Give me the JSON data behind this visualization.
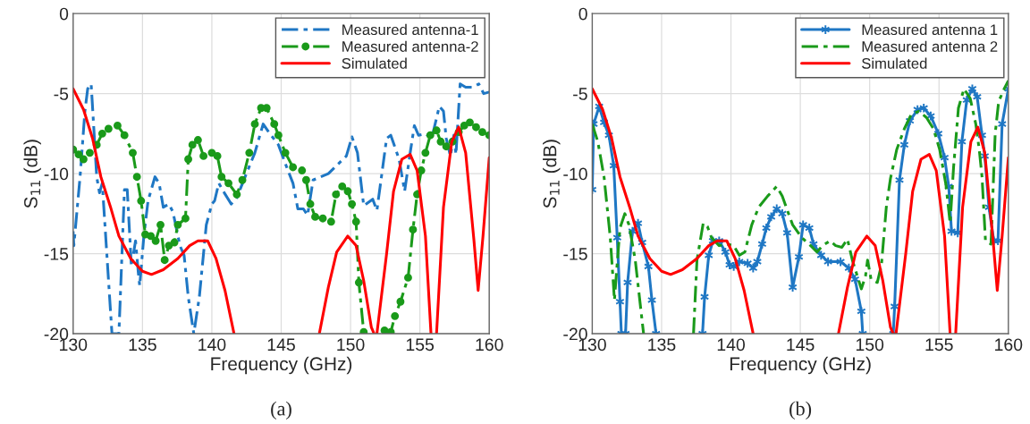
{
  "chart_data": [
    {
      "type": "line",
      "xlabel": "Frequency (GHz)",
      "ylabel": "S$_{11}$ (dB)",
      "xlim": [
        130,
        160
      ],
      "ylim": [
        -20,
        0
      ],
      "xticks": [
        130,
        135,
        140,
        145,
        150,
        155,
        160
      ],
      "yticks": [
        0,
        -5,
        -10,
        -15,
        -20
      ],
      "grid": true,
      "legend": "top right",
      "annotations": [
        "(a)"
      ],
      "series": [
        {
          "name": "Measured antenna-1",
          "color": "#1f77c4",
          "line_style": "dashed",
          "marker": "none",
          "x": [
            130,
            130.05,
            130.5,
            130.85,
            131.05,
            131.3,
            131.7,
            131.9,
            132.1,
            132.8,
            133.3,
            133.7,
            133.9,
            134.2,
            134.5,
            134.7,
            134.8,
            135.1,
            135.4,
            135.9,
            136.2,
            136.5,
            136.9,
            137.2,
            137.7,
            138.0,
            138.3,
            138.7,
            139.1,
            139.6,
            140.0,
            140.2,
            140.5,
            140.9,
            141.4,
            141.8,
            142.4,
            143.1,
            143.7,
            144.1,
            144.8,
            145.4,
            145.85,
            146.2,
            146.6,
            146.9,
            147.3,
            148.4,
            149.7,
            150.1,
            150.5,
            150.95,
            151.6,
            151.9,
            152.6,
            152.9,
            153.5,
            153.9,
            154.3,
            154.6,
            154.9,
            155.4,
            155.85,
            156.4,
            156.7,
            156.9,
            157.2,
            157.45,
            157.6,
            157.9,
            158.3,
            158.8,
            159.25,
            159.6,
            160
          ],
          "values": [
            -13.6,
            -14.5,
            -10.2,
            -6.1,
            -4.7,
            -4.4,
            -10.2,
            -11.2,
            -10.6,
            -20,
            -20,
            -11.0,
            -11.0,
            -15.8,
            -14.2,
            -16.2,
            -17.0,
            -13.9,
            -11.7,
            -10.2,
            -10.6,
            -12.1,
            -11.9,
            -12.4,
            -14.5,
            -15.1,
            -17.7,
            -20,
            -17.7,
            -13.2,
            -11.9,
            -11.7,
            -10.6,
            -11.2,
            -11.9,
            -11.5,
            -10.2,
            -8.7,
            -6.9,
            -7.4,
            -8.2,
            -9.6,
            -10.6,
            -12.2,
            -12.2,
            -12.6,
            -10.4,
            -10.0,
            -8.9,
            -7.7,
            -8.7,
            -12.0,
            -11.6,
            -12.3,
            -7.8,
            -7.6,
            -9.1,
            -11.1,
            -8.7,
            -7.0,
            -7.6,
            -7.5,
            -7.8,
            -5.8,
            -6.1,
            -7.8,
            -8.9,
            -7.6,
            -8.8,
            -4.4,
            -4.6,
            -4.6,
            -4.4,
            -5.0,
            -4.9
          ]
        },
        {
          "name": "Measured antenna-2",
          "color": "#1a9a1a",
          "line_style": "dashed",
          "marker": "circle",
          "x": [
            130,
            130.4,
            130.75,
            131.2,
            131.7,
            132.1,
            132.55,
            133.2,
            133.7,
            134.3,
            134.6,
            134.9,
            135.2,
            135.6,
            135.95,
            136.3,
            136.6,
            136.9,
            137.3,
            137.55,
            138.1,
            138.3,
            138.6,
            139.0,
            139.4,
            140.0,
            140.4,
            140.7,
            141.2,
            141.8,
            142.2,
            142.7,
            143.1,
            143.55,
            143.95,
            144.5,
            144.8,
            145.3,
            145.85,
            146.5,
            146.8,
            147.1,
            147.45,
            148.0,
            148.6,
            148.95,
            149.4,
            149.8,
            150.1,
            150.4,
            150.6,
            150.95,
            151.0,
            152.4,
            152.45,
            152.9,
            153.2,
            153.6,
            154.15,
            154.5,
            154.8,
            155.1,
            155.4,
            155.75,
            156.2,
            156.5,
            156.9,
            157.35,
            157.8,
            158.2,
            158.6,
            159.05,
            159.5,
            160
          ],
          "values": [
            -8.5,
            -8.8,
            -9.1,
            -8.7,
            -8.2,
            -7.5,
            -7.2,
            -7.0,
            -7.6,
            -8.7,
            -10.2,
            -11.7,
            -13.8,
            -13.9,
            -14.2,
            -13.2,
            -15.4,
            -14.5,
            -14.3,
            -13.2,
            -12.8,
            -9.1,
            -8.2,
            -7.9,
            -8.9,
            -8.7,
            -8.9,
            -10.2,
            -10.6,
            -11.3,
            -10.4,
            -8.7,
            -6.9,
            -5.9,
            -5.9,
            -6.9,
            -7.6,
            -8.7,
            -9.6,
            -9.8,
            -10.4,
            -11.9,
            -12.7,
            -12.8,
            -13.0,
            -11.3,
            -10.8,
            -11.1,
            -11.9,
            -13.0,
            -16.8,
            -19.9,
            null,
            null,
            -19.8,
            -19.9,
            -18.9,
            -18.0,
            -16.5,
            -13.5,
            -11.3,
            -9.8,
            -8.7,
            -7.6,
            -7.3,
            -8.0,
            -8.3,
            -8.0,
            -7.4,
            -7.0,
            -6.8,
            -7.1,
            -7.4,
            -7.6
          ]
        },
        {
          "name": "Simulated",
          "color": "#ff0000",
          "line_style": "solid",
          "marker": "none",
          "x": [
            130,
            130.75,
            131.4,
            132.0,
            132.7,
            133.3,
            134.15,
            135.0,
            135.65,
            136.5,
            137.55,
            138.4,
            139.0,
            139.7,
            140.3,
            140.95,
            141.6,
            141.7,
            147.7,
            147.75,
            148.4,
            149.0,
            149.8,
            150.4,
            150.95,
            151.5,
            151.7,
            151.8,
            151.9,
            152.6,
            153.1,
            153.7,
            154.3,
            154.8,
            155.4,
            155.8,
            156.0,
            156.2,
            156.7,
            157.3,
            157.8,
            158.3,
            158.9,
            159.2,
            159.55,
            160
          ],
          "values": [
            -4.7,
            -6.0,
            -7.8,
            -10.2,
            -12.1,
            -13.9,
            -15.3,
            -16.1,
            -16.3,
            -16.0,
            -15.3,
            -14.5,
            -14.2,
            -14.2,
            -15.3,
            -17.3,
            -20,
            null,
            null,
            -20,
            -17.1,
            -14.9,
            -13.9,
            -14.5,
            -16.7,
            -19.6,
            -20,
            null,
            -20,
            -15.0,
            -11.1,
            -9.1,
            -8.8,
            -9.8,
            -13.9,
            -20,
            null,
            -20,
            -12.1,
            -8.0,
            -7.1,
            -8.7,
            -14.2,
            -17.3,
            -13.9,
            -9.0
          ]
        }
      ]
    },
    {
      "type": "line",
      "xlabel": "Frequency (GHz)",
      "ylabel": "S$_{11}$ (dB)",
      "xlim": [
        130,
        160
      ],
      "ylim": [
        -20,
        0
      ],
      "xticks": [
        130,
        135,
        140,
        145,
        150,
        155,
        160
      ],
      "yticks": [
        0,
        -5,
        -10,
        -15,
        -20
      ],
      "grid": true,
      "legend": "top right",
      "annotations": [
        "(b)"
      ],
      "series": [
        {
          "name": "Measured antenna 1",
          "color": "#1f77c4",
          "line_style": "solid",
          "marker": "cross",
          "x": [
            130,
            130.1,
            130.5,
            130.85,
            131.2,
            131.55,
            131.8,
            132.0,
            132.1,
            132.3,
            132.4,
            132.55,
            132.9,
            133.3,
            133.6,
            134.05,
            134.3,
            134.6,
            136.0,
            137.95,
            138.1,
            138.4,
            138.7,
            139.15,
            139.6,
            139.9,
            140.2,
            140.6,
            141.2,
            141.6,
            141.9,
            142.25,
            142.55,
            142.9,
            143.3,
            143.7,
            144.05,
            144.45,
            144.9,
            145.2,
            145.65,
            145.95,
            146.5,
            147.0,
            147.9,
            148.5,
            148.95,
            149.4,
            149.5,
            150.5,
            151.7,
            151.8,
            152.15,
            152.5,
            152.9,
            153.45,
            153.9,
            154.4,
            154.95,
            155.4,
            155.7,
            155.9,
            156.35,
            156.65,
            157.0,
            157.4,
            157.75,
            158.1,
            158.3,
            158.6,
            158.95,
            159.25,
            159.55,
            160
          ],
          "values": [
            -11.0,
            -6.9,
            -5.8,
            -6.8,
            -7.6,
            -9.5,
            -14.0,
            -18.0,
            -20,
            null,
            -20,
            -16.8,
            -13.6,
            -13.1,
            -14.3,
            -15.8,
            -17.9,
            -20,
            null,
            -20,
            -17.7,
            -15.1,
            -14.2,
            -14.2,
            -14.9,
            -15.7,
            -15.8,
            -15.5,
            -15.6,
            -15.9,
            -15.5,
            -14.4,
            -13.4,
            -12.7,
            -12.2,
            -12.5,
            -13.7,
            -17.1,
            -15.2,
            -13.2,
            -13.4,
            -14.4,
            -15.1,
            -15.5,
            -15.5,
            -15.9,
            -16.6,
            -18.6,
            -20,
            null,
            -20,
            -18.3,
            -10.4,
            -8.2,
            -6.7,
            -6.0,
            -5.9,
            -6.4,
            -7.5,
            -9.0,
            -10.8,
            -13.6,
            -13.7,
            -8.0,
            -5.4,
            -4.7,
            -5.2,
            -7.6,
            -8.9,
            -12.1,
            -14.2,
            -14.2,
            -6.9,
            -4.7
          ]
        },
        {
          "name": "Measured antenna 2",
          "color": "#1a9a1a",
          "line_style": "dashed",
          "marker": "none",
          "x": [
            130,
            130.4,
            130.85,
            131.3,
            131.6,
            131.8,
            132.0,
            132.35,
            132.65,
            133.1,
            133.4,
            133.7,
            135.5,
            137.3,
            137.55,
            138.0,
            138.3,
            138.6,
            139.15,
            139.7,
            140.2,
            140.6,
            141.0,
            141.5,
            142.0,
            142.65,
            143.3,
            143.7,
            144.15,
            144.45,
            145.1,
            145.75,
            146.2,
            146.6,
            147.15,
            147.55,
            148.0,
            148.4,
            148.75,
            149.4,
            149.7,
            149.85,
            150.1,
            150.55,
            150.85,
            151.2,
            151.5,
            151.95,
            152.5,
            153.0,
            153.55,
            154.1,
            154.6,
            155.05,
            155.5,
            155.8,
            156.05,
            156.4,
            156.8,
            157.25,
            157.65,
            157.9,
            158.1,
            158.35,
            158.75,
            159.05,
            159.3,
            159.7,
            160
          ],
          "values": [
            -6.9,
            -8.0,
            -10.2,
            -14.0,
            -17.9,
            -15.6,
            -13.4,
            -12.5,
            -13.2,
            -15.4,
            -17.7,
            -20,
            null,
            -20,
            -15.4,
            -13.1,
            -13.3,
            -14.0,
            -14.5,
            -14.4,
            -14.5,
            -15.1,
            -14.9,
            -13.2,
            -12.1,
            -11.4,
            -10.8,
            -11.4,
            -12.5,
            -13.2,
            -14.0,
            -14.5,
            -14.9,
            -14.5,
            -14.2,
            -14.5,
            -14.6,
            -14.1,
            -15.4,
            -17.2,
            -16.4,
            -15.4,
            -16.6,
            -16.8,
            -15.7,
            -12.1,
            -10.3,
            -8.5,
            -7.2,
            -6.3,
            -6.1,
            -6.5,
            -7.2,
            -8.5,
            -10.7,
            -13.1,
            -9.6,
            -5.9,
            -4.7,
            -5.3,
            -6.9,
            -8.5,
            -10.2,
            -14.2,
            -14.4,
            -7.5,
            -5.5,
            -4.7,
            -4.2
          ]
        },
        {
          "name": "Simulated",
          "color": "#ff0000",
          "line_style": "solid",
          "marker": "none",
          "x": [
            130,
            130.75,
            131.4,
            132.0,
            132.7,
            133.3,
            134.15,
            135.0,
            135.65,
            136.5,
            137.55,
            138.4,
            139.0,
            139.7,
            140.3,
            140.95,
            141.6,
            141.7,
            147.7,
            147.75,
            148.4,
            149.0,
            149.8,
            150.4,
            150.95,
            151.5,
            151.7,
            151.8,
            151.9,
            152.6,
            153.1,
            153.7,
            154.3,
            154.8,
            155.4,
            155.8,
            156.0,
            156.2,
            156.7,
            157.3,
            157.8,
            158.3,
            158.9,
            159.2,
            159.55,
            160
          ],
          "values": [
            -4.7,
            -6.0,
            -7.8,
            -10.2,
            -12.1,
            -13.9,
            -15.3,
            -16.1,
            -16.3,
            -16.0,
            -15.3,
            -14.5,
            -14.2,
            -14.2,
            -15.3,
            -17.3,
            -20,
            null,
            null,
            -20,
            -17.1,
            -14.9,
            -13.9,
            -14.5,
            -16.7,
            -19.6,
            -20,
            null,
            -20,
            -15.0,
            -11.1,
            -9.1,
            -8.8,
            -9.8,
            -13.9,
            -20,
            null,
            -20,
            -12.1,
            -8.0,
            -7.1,
            -8.7,
            -14.2,
            -17.3,
            -13.9,
            -9.0
          ]
        }
      ]
    }
  ]
}
